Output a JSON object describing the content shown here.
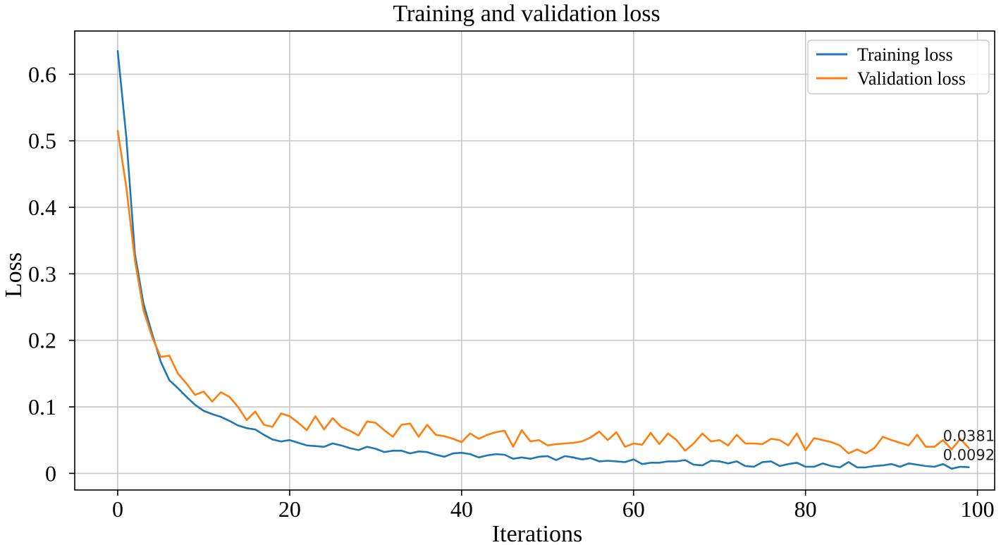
{
  "chart_data": {
    "type": "line",
    "title": "Training and validation loss",
    "xlabel": "Iterations",
    "ylabel": "Loss",
    "xlim": [
      -5,
      102
    ],
    "ylim": [
      -0.025,
      0.665
    ],
    "xticks": [
      0,
      20,
      40,
      60,
      80,
      100
    ],
    "yticks": [
      0,
      0.1,
      0.2,
      0.3,
      0.4,
      0.5,
      0.6
    ],
    "xtick_labels": [
      "0",
      "20",
      "40",
      "60",
      "80",
      "100"
    ],
    "ytick_labels": [
      "0",
      "0.1",
      "0.2",
      "0.3",
      "0.4",
      "0.5",
      "0.6"
    ],
    "grid": true,
    "legend_position": "top-right",
    "series": [
      {
        "name": "Training loss",
        "color": "#1f77b4",
        "values": [
          0.635,
          0.505,
          0.33,
          0.255,
          0.21,
          0.168,
          0.14,
          0.128,
          0.115,
          0.103,
          0.094,
          0.089,
          0.085,
          0.079,
          0.072,
          0.068,
          0.066,
          0.058,
          0.051,
          0.048,
          0.05,
          0.046,
          0.042,
          0.041,
          0.04,
          0.045,
          0.042,
          0.038,
          0.035,
          0.04,
          0.037,
          0.032,
          0.034,
          0.034,
          0.03,
          0.033,
          0.032,
          0.028,
          0.025,
          0.03,
          0.031,
          0.029,
          0.024,
          0.027,
          0.029,
          0.028,
          0.022,
          0.024,
          0.022,
          0.025,
          0.026,
          0.02,
          0.026,
          0.024,
          0.021,
          0.023,
          0.018,
          0.019,
          0.018,
          0.017,
          0.021,
          0.014,
          0.016,
          0.016,
          0.018,
          0.018,
          0.02,
          0.013,
          0.012,
          0.019,
          0.018,
          0.015,
          0.018,
          0.011,
          0.01,
          0.017,
          0.018,
          0.011,
          0.014,
          0.016,
          0.01,
          0.01,
          0.015,
          0.011,
          0.009,
          0.017,
          0.009,
          0.009,
          0.011,
          0.012,
          0.014,
          0.01,
          0.015,
          0.013,
          0.011,
          0.01,
          0.014,
          0.007,
          0.01,
          0.0092
        ]
      },
      {
        "name": "Validation loss",
        "color": "#ff7f0e",
        "values": [
          0.515,
          0.43,
          0.32,
          0.245,
          0.205,
          0.175,
          0.177,
          0.15,
          0.135,
          0.118,
          0.123,
          0.108,
          0.122,
          0.115,
          0.1,
          0.08,
          0.093,
          0.073,
          0.07,
          0.09,
          0.086,
          0.076,
          0.065,
          0.086,
          0.066,
          0.083,
          0.07,
          0.064,
          0.057,
          0.078,
          0.076,
          0.065,
          0.055,
          0.073,
          0.075,
          0.055,
          0.073,
          0.058,
          0.056,
          0.052,
          0.047,
          0.06,
          0.052,
          0.058,
          0.062,
          0.064,
          0.04,
          0.065,
          0.048,
          0.05,
          0.042,
          0.044,
          0.045,
          0.046,
          0.048,
          0.054,
          0.063,
          0.05,
          0.062,
          0.04,
          0.045,
          0.043,
          0.061,
          0.044,
          0.06,
          0.05,
          0.034,
          0.045,
          0.06,
          0.048,
          0.05,
          0.042,
          0.058,
          0.045,
          0.045,
          0.044,
          0.052,
          0.05,
          0.042,
          0.06,
          0.035,
          0.053,
          0.05,
          0.047,
          0.042,
          0.03,
          0.036,
          0.03,
          0.038,
          0.055,
          0.05,
          0.046,
          0.042,
          0.058,
          0.04,
          0.04,
          0.05,
          0.036,
          0.052,
          0.0381
        ]
      }
    ],
    "annotations": [
      {
        "text": "0.0381",
        "x": 99,
        "y": 0.0381
      },
      {
        "text": "0.0092",
        "x": 99,
        "y": 0.0092
      }
    ]
  }
}
